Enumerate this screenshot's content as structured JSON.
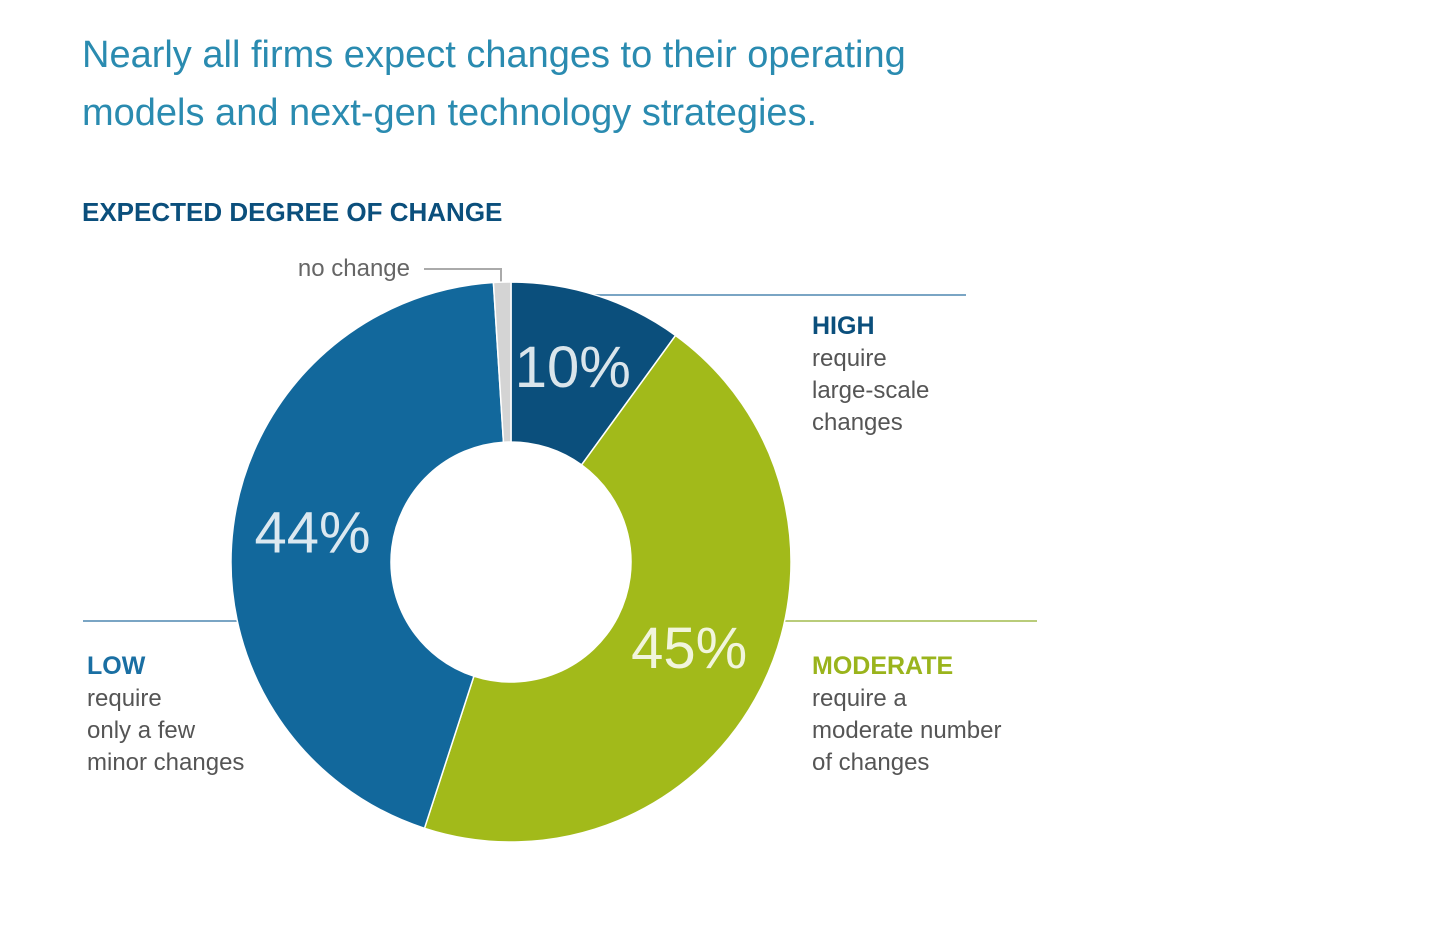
{
  "chart_data": {
    "type": "pie",
    "title": "Nearly all firms expect changes to their operating models and next-gen technology strategies.",
    "subtitle": "EXPECTED DEGREE OF CHANGE",
    "categories": [
      "HIGH",
      "MODERATE",
      "LOW",
      "no change"
    ],
    "descriptions": [
      [
        "require",
        "large-scale",
        "changes"
      ],
      [
        "require a",
        "moderate number",
        "of changes"
      ],
      [
        "require",
        "only a few",
        "minor changes"
      ],
      null
    ],
    "values": [
      10,
      45,
      44,
      1
    ],
    "value_labels": [
      "10%",
      "45%",
      "44%",
      null
    ],
    "colors": [
      "#0b4f7c",
      "#a2ba1a",
      "#12689c",
      "#d4d4d4"
    ],
    "label_colors": [
      "#0b4f7c",
      "#9ab41c",
      "#1a6fa3",
      "#666666"
    ],
    "donut": true
  }
}
